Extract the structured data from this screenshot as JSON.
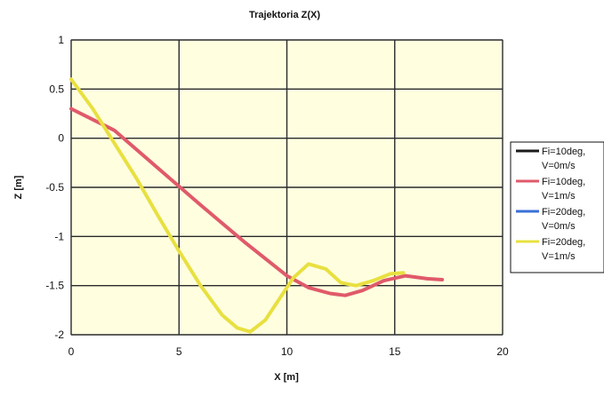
{
  "chart_data": {
    "type": "line",
    "title": "Trajektoria Z(X)",
    "xlabel": "X [m]",
    "ylabel": "Z [m]",
    "xlim": [
      0,
      20
    ],
    "ylim": [
      -2,
      1
    ],
    "xticks": [
      "0",
      "5",
      "10",
      "15",
      "20"
    ],
    "yticks": [
      "1",
      "0.5",
      "0",
      "-0.5",
      "-1",
      "-1.5",
      "-2"
    ],
    "xtick_values": [
      0,
      5,
      10,
      15,
      20
    ],
    "ytick_values": [
      1,
      0.5,
      0,
      -0.5,
      -1,
      -1.5,
      -2
    ],
    "grid": true,
    "plot_background": "#ffffe0",
    "legend_position": "right",
    "series": [
      {
        "name": "Fi=10deg, V=0m/s",
        "legend_lines": [
          "Fi=10deg,",
          "V=0m/s"
        ],
        "color": "#1a1a1a",
        "x": [
          0,
          2,
          4,
          6,
          8,
          10,
          11,
          12,
          12.7,
          13.5,
          14.5,
          15.5,
          16.5,
          17.2
        ],
        "y": [
          0.3,
          0.08,
          -0.3,
          -0.68,
          -1.05,
          -1.4,
          -1.52,
          -1.58,
          -1.6,
          -1.55,
          -1.45,
          -1.4,
          -1.43,
          -1.44
        ]
      },
      {
        "name": "Fi=10deg, V=1m/s",
        "legend_lines": [
          "Fi=10deg,",
          "V=1m/s"
        ],
        "color": "#e05a6a",
        "x": [
          0,
          2,
          4,
          6,
          8,
          10,
          11,
          12,
          12.7,
          13.5,
          14.5,
          15.5,
          16.5,
          17.2
        ],
        "y": [
          0.3,
          0.08,
          -0.3,
          -0.68,
          -1.05,
          -1.4,
          -1.52,
          -1.58,
          -1.6,
          -1.55,
          -1.45,
          -1.4,
          -1.43,
          -1.44
        ]
      },
      {
        "name": "Fi=20deg, V=0m/s",
        "legend_lines": [
          "Fi=20deg,",
          "V=0m/s"
        ],
        "color": "#3a6fd8",
        "x": [
          0,
          1,
          2,
          3,
          4,
          5,
          6,
          7,
          7.7,
          8.3,
          9,
          9.7,
          10.3,
          11,
          11.8,
          12.5,
          13.2,
          14,
          14.8,
          15.4
        ],
        "y": [
          0.6,
          0.3,
          -0.05,
          -0.4,
          -0.78,
          -1.15,
          -1.5,
          -1.8,
          -1.93,
          -1.97,
          -1.85,
          -1.62,
          -1.42,
          -1.28,
          -1.33,
          -1.47,
          -1.5,
          -1.45,
          -1.38,
          -1.37
        ]
      },
      {
        "name": "Fi=20deg, V=1m/s",
        "legend_lines": [
          "Fi=20deg,",
          "V=1m/s"
        ],
        "color": "#e8e040",
        "x": [
          0,
          1,
          2,
          3,
          4,
          5,
          6,
          7,
          7.7,
          8.3,
          9,
          9.7,
          10.3,
          11,
          11.8,
          12.5,
          13.2,
          14,
          14.8,
          15.4
        ],
        "y": [
          0.6,
          0.3,
          -0.05,
          -0.4,
          -0.78,
          -1.15,
          -1.5,
          -1.8,
          -1.93,
          -1.97,
          -1.85,
          -1.62,
          -1.42,
          -1.28,
          -1.33,
          -1.47,
          -1.5,
          -1.45,
          -1.38,
          -1.37
        ]
      }
    ]
  }
}
